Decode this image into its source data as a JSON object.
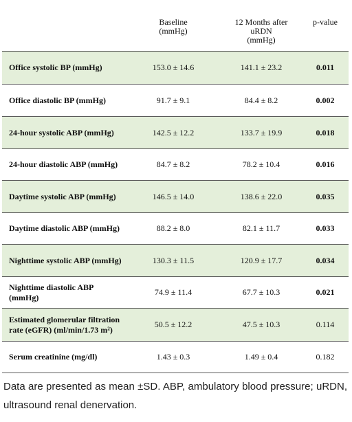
{
  "header": {
    "col1": "",
    "col2": "Baseline\n(mmHg)",
    "col3": "12 Months after\nuRDN\n(mmHg)",
    "col4": "p-value"
  },
  "rows": [
    {
      "label": "Office systolic BP (mmHg)",
      "baseline": "153.0 ± 14.6",
      "after": "141.1 ± 23.2",
      "p": "0.011",
      "p_bold": true,
      "shaded": true
    },
    {
      "label": "Office diastolic BP (mmHg)",
      "baseline": "91.7 ± 9.1",
      "after": "84.4 ± 8.2",
      "p": "0.002",
      "p_bold": true,
      "shaded": false
    },
    {
      "label": "24-hour systolic ABP (mmHg)",
      "baseline": "142.5 ± 12.2",
      "after": "133.7 ± 19.9",
      "p": "0.018",
      "p_bold": true,
      "shaded": true
    },
    {
      "label": "24-hour diastolic ABP (mmHg)",
      "baseline": "84.7 ± 8.2",
      "after": "78.2 ± 10.4",
      "p": "0.016",
      "p_bold": true,
      "shaded": false
    },
    {
      "label": "Daytime systolic ABP (mmHg)",
      "baseline": "146.5 ± 14.0",
      "after": "138.6 ± 22.0",
      "p": "0.035",
      "p_bold": true,
      "shaded": true
    },
    {
      "label": "Daytime diastolic ABP (mmHg)",
      "baseline": "88.2 ± 8.0",
      "after": "82.1 ± 11.7",
      "p": "0.033",
      "p_bold": true,
      "shaded": false
    },
    {
      "label": "Nighttime systolic ABP (mmHg)",
      "baseline": "130.3 ± 11.5",
      "after": "120.9 ± 17.7",
      "p": "0.034",
      "p_bold": true,
      "shaded": true
    },
    {
      "label": "Nighttime diastolic ABP\n(mmHg)",
      "baseline": "74.9 ± 11.4",
      "after": "67.7 ± 10.3",
      "p": "0.021",
      "p_bold": true,
      "shaded": false
    },
    {
      "label": "Estimated glomerular filtration\nrate (eGFR) (ml/min/1.73 m²)",
      "baseline": "50.5 ± 12.2",
      "after": "47.5 ± 10.3",
      "p": "0.114",
      "p_bold": false,
      "shaded": true
    },
    {
      "label": "Serum creatinine (mg/dl)",
      "baseline": "1.43 ± 0.3",
      "after": "1.49 ± 0.4",
      "p": "0.182",
      "p_bold": false,
      "shaded": false
    }
  ],
  "footnote": "Data are presented as mean ±SD. ABP, ambulatory blood pressure; uRDN, ultrasound renal denervation."
}
